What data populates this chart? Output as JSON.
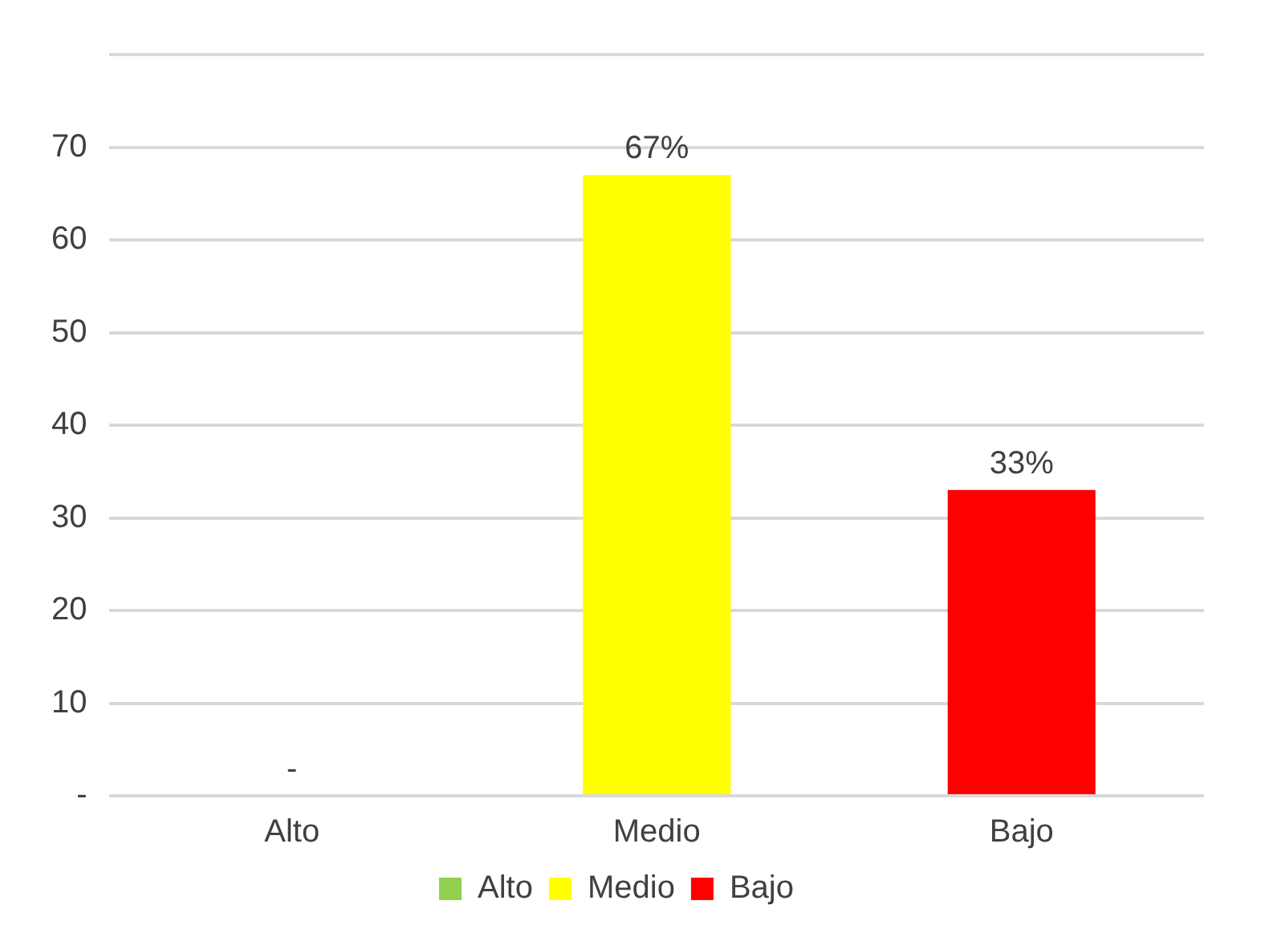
{
  "chart_data": {
    "type": "bar",
    "categories": [
      "Alto",
      "Medio",
      "Bajo"
    ],
    "series": [
      {
        "name": "Alto",
        "color": "#92d050",
        "values": [
          0,
          null,
          null
        ],
        "value_labels": [
          "-",
          null,
          null
        ]
      },
      {
        "name": "Medio",
        "color": "#ffff00",
        "values": [
          null,
          67,
          null
        ],
        "value_labels": [
          null,
          "67%",
          null
        ]
      },
      {
        "name": "Bajo",
        "color": "#ff0000",
        "values": [
          null,
          null,
          33
        ],
        "value_labels": [
          null,
          null,
          "33%"
        ]
      }
    ],
    "ylim": [
      0,
      80
    ],
    "yticks": [
      {
        "value": 0,
        "label": "-"
      },
      10,
      20,
      30,
      40,
      50,
      60,
      70,
      {
        "value": 80,
        "label": null
      }
    ],
    "grid": "y",
    "legend": "bottom"
  }
}
